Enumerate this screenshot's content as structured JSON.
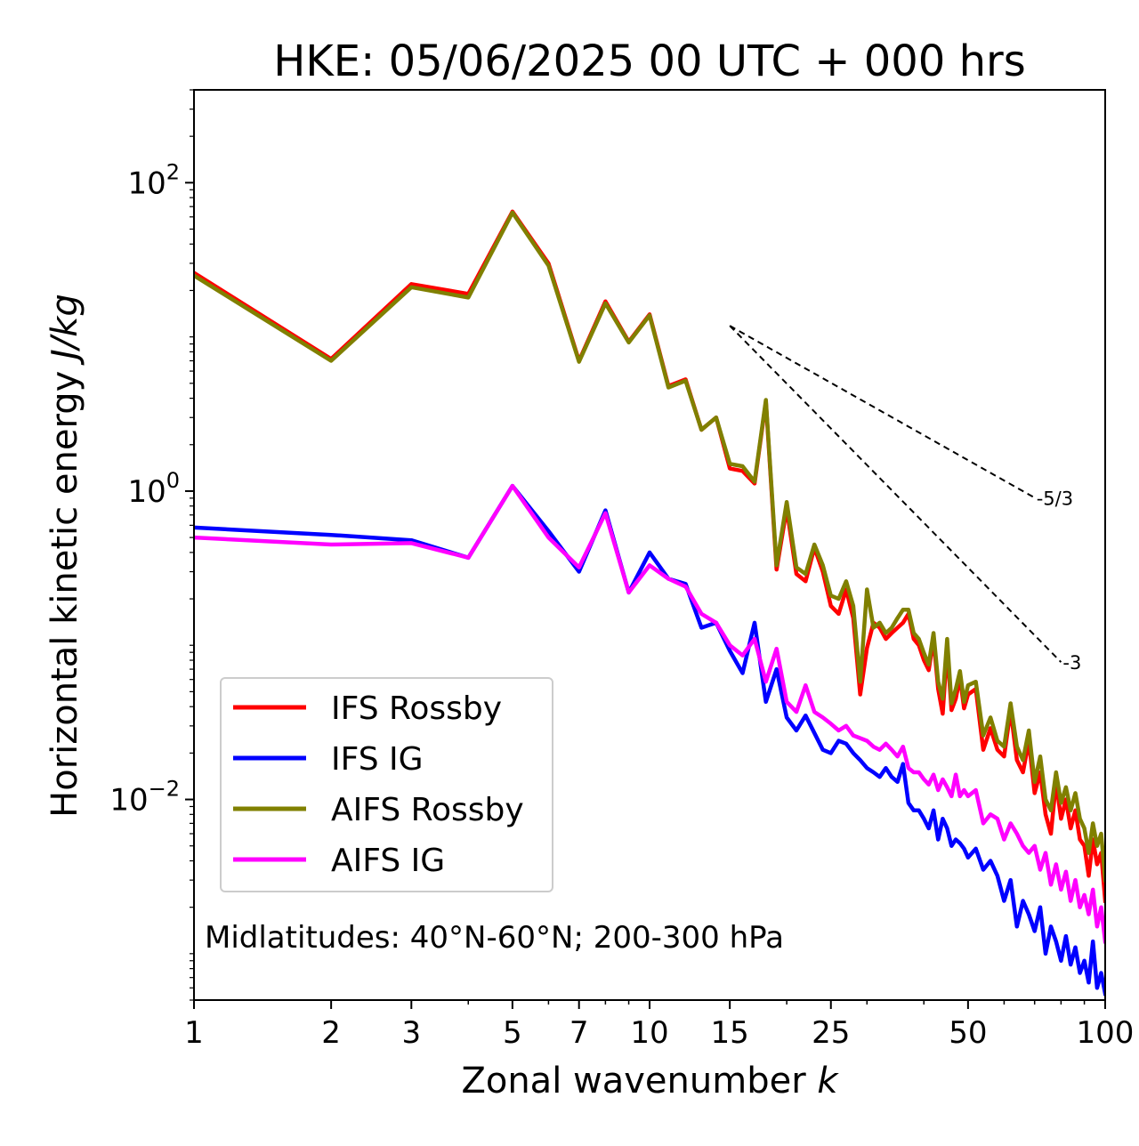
{
  "chart_data": {
    "type": "line",
    "title": "HKE: 05/06/2025 00 UTC + 000 hrs",
    "xlabel": "Zonal wavenumber k",
    "ylabel": "Horizontal kinetic energy J/kg",
    "xscale": "log",
    "yscale": "log",
    "xlim": [
      1,
      100
    ],
    "ylim": [
      0.0005,
      400
    ],
    "grid": false,
    "legend_position": "lower-left",
    "x_ticks": [
      1,
      2,
      3,
      5,
      7,
      10,
      15,
      25,
      50,
      100
    ],
    "x_tick_labels": [
      "1",
      "2",
      "3",
      "5",
      "7",
      "10",
      "15",
      "25",
      "50",
      "100"
    ],
    "y_ticks": [
      0.01,
      1,
      100
    ],
    "y_tick_labels": [
      {
        "base": "10",
        "exp": "−2"
      },
      {
        "base": "10",
        "exp": "0"
      },
      {
        "base": "10",
        "exp": "2"
      }
    ],
    "annotation": "Midlatitudes: 40°N-60°N; 200-300 hPa",
    "reference_slopes": [
      {
        "label": "-5/3",
        "k_start": 15,
        "k_end": 70,
        "y_start": 11.8
      },
      {
        "label": "-3",
        "k_start": 15,
        "k_end": 80,
        "y_start": 11.8
      }
    ],
    "series": [
      {
        "name": "IFS Rossby",
        "color": "#ff0000",
        "x": [
          1,
          2,
          3,
          4,
          5,
          6,
          7,
          8,
          9,
          10,
          11,
          12,
          13,
          14,
          15,
          16,
          17,
          18,
          19,
          20,
          21,
          22,
          23,
          24,
          25,
          26,
          27,
          28,
          29,
          30,
          31,
          32,
          33,
          34,
          35,
          36,
          37,
          38,
          39,
          40,
          41,
          42,
          43,
          44,
          45,
          46,
          47,
          48,
          49,
          50,
          52,
          54,
          56,
          58,
          60,
          62,
          64,
          66,
          68,
          70,
          72,
          74,
          76,
          78,
          80,
          82,
          84,
          86,
          88,
          90,
          92,
          94,
          96,
          98,
          100
        ],
        "values": [
          26,
          7.2,
          22,
          19,
          65,
          30,
          7.0,
          17,
          9.3,
          14,
          4.8,
          5.3,
          2.5,
          3.0,
          1.4,
          1.35,
          1.12,
          3.8,
          0.31,
          0.77,
          0.29,
          0.26,
          0.43,
          0.3,
          0.18,
          0.16,
          0.23,
          0.15,
          0.048,
          0.096,
          0.14,
          0.13,
          0.11,
          0.12,
          0.13,
          0.14,
          0.16,
          0.11,
          0.1,
          0.08,
          0.069,
          0.11,
          0.052,
          0.036,
          0.095,
          0.038,
          0.045,
          0.062,
          0.039,
          0.048,
          0.052,
          0.021,
          0.029,
          0.021,
          0.019,
          0.038,
          0.018,
          0.015,
          0.024,
          0.011,
          0.015,
          0.008,
          0.006,
          0.013,
          0.0075,
          0.01,
          0.0065,
          0.0085,
          0.0055,
          0.005,
          0.0032,
          0.0055,
          0.0038,
          0.0045,
          0.0022
        ]
      },
      {
        "name": "IFS IG",
        "color": "#0000ff",
        "x": [
          1,
          2,
          3,
          4,
          5,
          6,
          7,
          8,
          9,
          10,
          11,
          12,
          13,
          14,
          15,
          16,
          17,
          18,
          19,
          20,
          21,
          22,
          23,
          24,
          25,
          26,
          27,
          28,
          29,
          30,
          31,
          32,
          33,
          34,
          35,
          36,
          37,
          38,
          39,
          40,
          41,
          42,
          43,
          44,
          45,
          46,
          47,
          48,
          49,
          50,
          52,
          54,
          56,
          58,
          60,
          62,
          64,
          66,
          68,
          70,
          72,
          74,
          76,
          78,
          80,
          82,
          84,
          86,
          88,
          90,
          92,
          94,
          96,
          98,
          100
        ],
        "values": [
          0.58,
          0.52,
          0.48,
          0.37,
          1.08,
          0.55,
          0.3,
          0.75,
          0.22,
          0.4,
          0.27,
          0.25,
          0.13,
          0.14,
          0.092,
          0.066,
          0.14,
          0.043,
          0.07,
          0.034,
          0.028,
          0.035,
          0.027,
          0.021,
          0.02,
          0.024,
          0.023,
          0.02,
          0.018,
          0.016,
          0.015,
          0.014,
          0.016,
          0.014,
          0.013,
          0.017,
          0.0095,
          0.0085,
          0.0085,
          0.0075,
          0.0065,
          0.0085,
          0.0055,
          0.0075,
          0.0065,
          0.005,
          0.0055,
          0.0052,
          0.0048,
          0.0042,
          0.0048,
          0.0035,
          0.004,
          0.0032,
          0.0022,
          0.003,
          0.0015,
          0.0022,
          0.0018,
          0.0014,
          0.002,
          0.001,
          0.0015,
          0.0012,
          0.0009,
          0.0013,
          0.00085,
          0.0011,
          0.00075,
          0.0009,
          0.00065,
          0.0012,
          0.0006,
          0.00075,
          0.00055
        ]
      },
      {
        "name": "AIFS Rossby",
        "color": "#808000",
        "x": [
          1,
          2,
          3,
          4,
          5,
          6,
          7,
          8,
          9,
          10,
          11,
          12,
          13,
          14,
          15,
          16,
          17,
          18,
          19,
          20,
          21,
          22,
          23,
          24,
          25,
          26,
          27,
          28,
          29,
          30,
          31,
          32,
          33,
          34,
          35,
          36,
          37,
          38,
          39,
          40,
          41,
          42,
          43,
          44,
          45,
          46,
          47,
          48,
          49,
          50,
          52,
          54,
          56,
          58,
          60,
          62,
          64,
          66,
          68,
          70,
          72,
          74,
          76,
          78,
          80,
          82,
          84,
          86,
          88,
          90,
          92,
          94,
          96,
          98,
          100
        ],
        "values": [
          25,
          7.0,
          21,
          18,
          64,
          29,
          6.9,
          16.5,
          9.2,
          13.8,
          4.7,
          5.2,
          2.5,
          3.0,
          1.5,
          1.45,
          1.15,
          3.9,
          0.33,
          0.85,
          0.32,
          0.29,
          0.45,
          0.33,
          0.21,
          0.2,
          0.26,
          0.18,
          0.058,
          0.23,
          0.13,
          0.14,
          0.12,
          0.13,
          0.15,
          0.17,
          0.17,
          0.12,
          0.11,
          0.089,
          0.075,
          0.12,
          0.058,
          0.045,
          0.11,
          0.042,
          0.052,
          0.068,
          0.043,
          0.055,
          0.058,
          0.026,
          0.034,
          0.024,
          0.022,
          0.042,
          0.022,
          0.018,
          0.028,
          0.013,
          0.019,
          0.01,
          0.0085,
          0.015,
          0.0095,
          0.012,
          0.0085,
          0.011,
          0.0075,
          0.0065,
          0.0045,
          0.007,
          0.005,
          0.006,
          0.003
        ]
      },
      {
        "name": "AIFS IG",
        "color": "#ff00ff",
        "x": [
          1,
          2,
          3,
          4,
          5,
          6,
          7,
          8,
          9,
          10,
          11,
          12,
          13,
          14,
          15,
          16,
          17,
          18,
          19,
          20,
          21,
          22,
          23,
          24,
          25,
          26,
          27,
          28,
          29,
          30,
          31,
          32,
          33,
          34,
          35,
          36,
          37,
          38,
          39,
          40,
          41,
          42,
          43,
          44,
          45,
          46,
          47,
          48,
          49,
          50,
          52,
          54,
          56,
          58,
          60,
          62,
          64,
          66,
          68,
          70,
          72,
          74,
          76,
          78,
          80,
          82,
          84,
          86,
          88,
          90,
          92,
          94,
          96,
          98,
          100
        ],
        "values": [
          0.5,
          0.45,
          0.46,
          0.37,
          1.08,
          0.5,
          0.32,
          0.72,
          0.22,
          0.33,
          0.27,
          0.24,
          0.16,
          0.14,
          0.1,
          0.086,
          0.11,
          0.058,
          0.095,
          0.043,
          0.037,
          0.055,
          0.037,
          0.034,
          0.031,
          0.028,
          0.03,
          0.026,
          0.025,
          0.024,
          0.022,
          0.021,
          0.023,
          0.021,
          0.019,
          0.022,
          0.016,
          0.015,
          0.015,
          0.0135,
          0.0125,
          0.0145,
          0.0115,
          0.0135,
          0.012,
          0.0105,
          0.0145,
          0.0105,
          0.0115,
          0.0105,
          0.0115,
          0.007,
          0.008,
          0.0075,
          0.0055,
          0.007,
          0.006,
          0.005,
          0.0045,
          0.005,
          0.0035,
          0.0045,
          0.0028,
          0.0038,
          0.0026,
          0.0034,
          0.0022,
          0.003,
          0.002,
          0.0024,
          0.0018,
          0.0026,
          0.0015,
          0.002,
          0.0012
        ]
      }
    ]
  }
}
